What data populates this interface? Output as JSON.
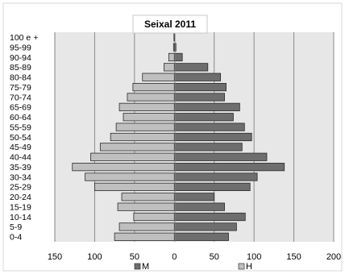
{
  "chart_data": {
    "type": "bar",
    "orientation": "horizontal",
    "layout": "population-pyramid",
    "title": "Seixal 2011",
    "categories": [
      "100 e +",
      "95-99",
      "90-94",
      "85-89",
      "80-84",
      "75-79",
      "70-74",
      "65-69",
      "60-64",
      "55-59",
      "50-54",
      "45-49",
      "40-44",
      "35-39",
      "30-34",
      "25-29",
      "20-24",
      "15-19",
      "10-14",
      "5-9",
      "0-4"
    ],
    "series": [
      {
        "name": "M",
        "side": "right",
        "color": "#6e6e6e",
        "values": [
          0.5,
          2,
          10,
          42,
          58,
          65,
          63,
          82,
          74,
          88,
          97,
          85,
          116,
          138,
          104,
          95,
          50,
          63,
          89,
          78,
          68
        ]
      },
      {
        "name": "H",
        "side": "left",
        "color": "#bfbfbf",
        "values": [
          0.5,
          1,
          7,
          13,
          40,
          52,
          59,
          69,
          64,
          73,
          80,
          93,
          105,
          128,
          112,
          100,
          66,
          71,
          51,
          69,
          75
        ]
      }
    ],
    "x_ticks": [
      "150",
      "100",
      "50",
      "0",
      "50",
      "100",
      "150",
      "200"
    ],
    "xlim": [
      -150,
      200
    ],
    "grid": true,
    "legend": "bottom",
    "plot_background": "#e7e7e7"
  }
}
